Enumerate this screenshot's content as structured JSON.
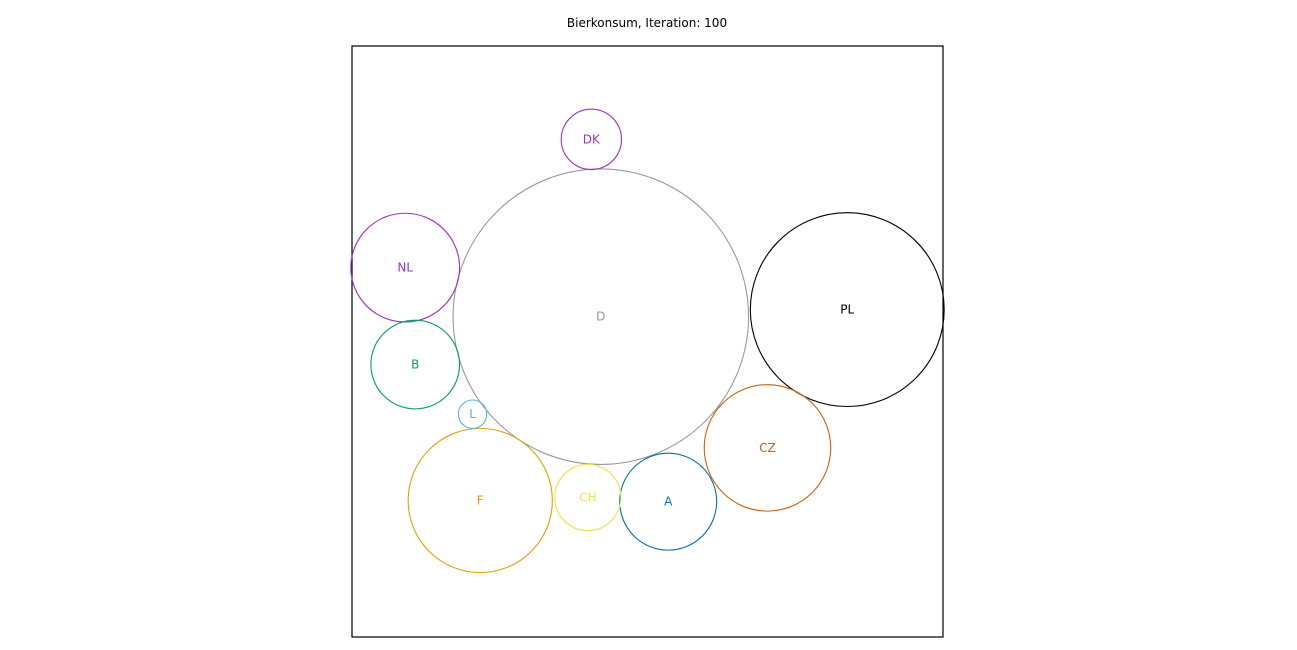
{
  "chart_data": {
    "type": "bubble-packing",
    "title": "Bierkonsum, Iteration: 100",
    "xlim": [
      0,
      1
    ],
    "ylim": [
      0,
      1
    ],
    "grid": false,
    "legend": "none",
    "bubbles": [
      {
        "label": "D",
        "x": 0.421,
        "y": 0.542,
        "r": 0.25,
        "color": "#999999"
      },
      {
        "label": "PL",
        "x": 0.838,
        "y": 0.554,
        "r": 0.164,
        "color": "#000000"
      },
      {
        "label": "F",
        "x": 0.217,
        "y": 0.231,
        "r": 0.122,
        "color": "#E69F00"
      },
      {
        "label": "CZ",
        "x": 0.703,
        "y": 0.32,
        "r": 0.107,
        "color": "#D55E00"
      },
      {
        "label": "NL",
        "x": 0.09,
        "y": 0.625,
        "r": 0.092,
        "color": "#9933CC"
      },
      {
        "label": "A",
        "x": 0.535,
        "y": 0.229,
        "r": 0.082,
        "color": "#0072B2"
      },
      {
        "label": "B",
        "x": 0.107,
        "y": 0.461,
        "r": 0.075,
        "color": "#009E73"
      },
      {
        "label": "CH",
        "x": 0.399,
        "y": 0.236,
        "r": 0.056,
        "color": "#F0E442"
      },
      {
        "label": "DK",
        "x": 0.405,
        "y": 0.842,
        "r": 0.051,
        "color": "#9933CC"
      },
      {
        "label": "L",
        "x": 0.204,
        "y": 0.377,
        "r": 0.024,
        "color": "#56B4E9"
      }
    ]
  }
}
